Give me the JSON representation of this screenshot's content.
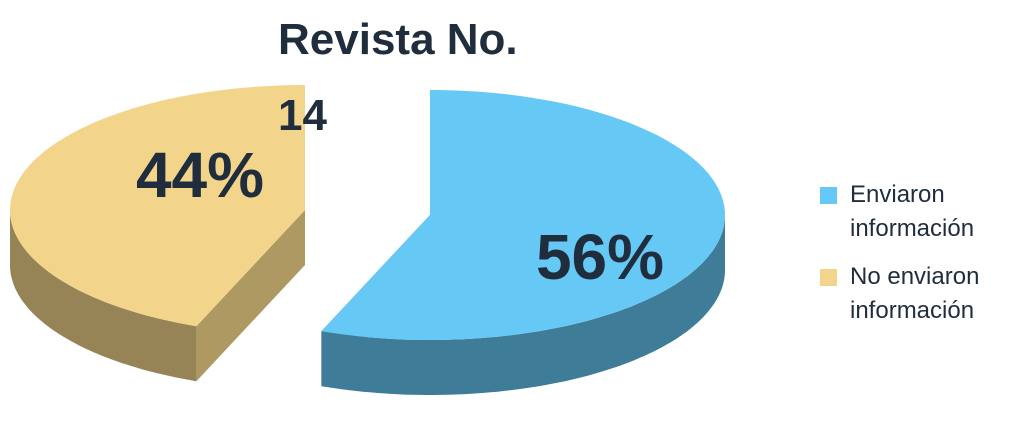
{
  "chart_data": {
    "type": "pie3d",
    "title": "Revista No. 14",
    "categories": [
      "Enviaron información",
      "No enviaron información"
    ],
    "values": [
      56,
      44
    ],
    "value_labels": [
      "56%",
      "44%"
    ],
    "colors": [
      "#66c8f5",
      "#f2d58a"
    ],
    "legend": "right"
  }
}
